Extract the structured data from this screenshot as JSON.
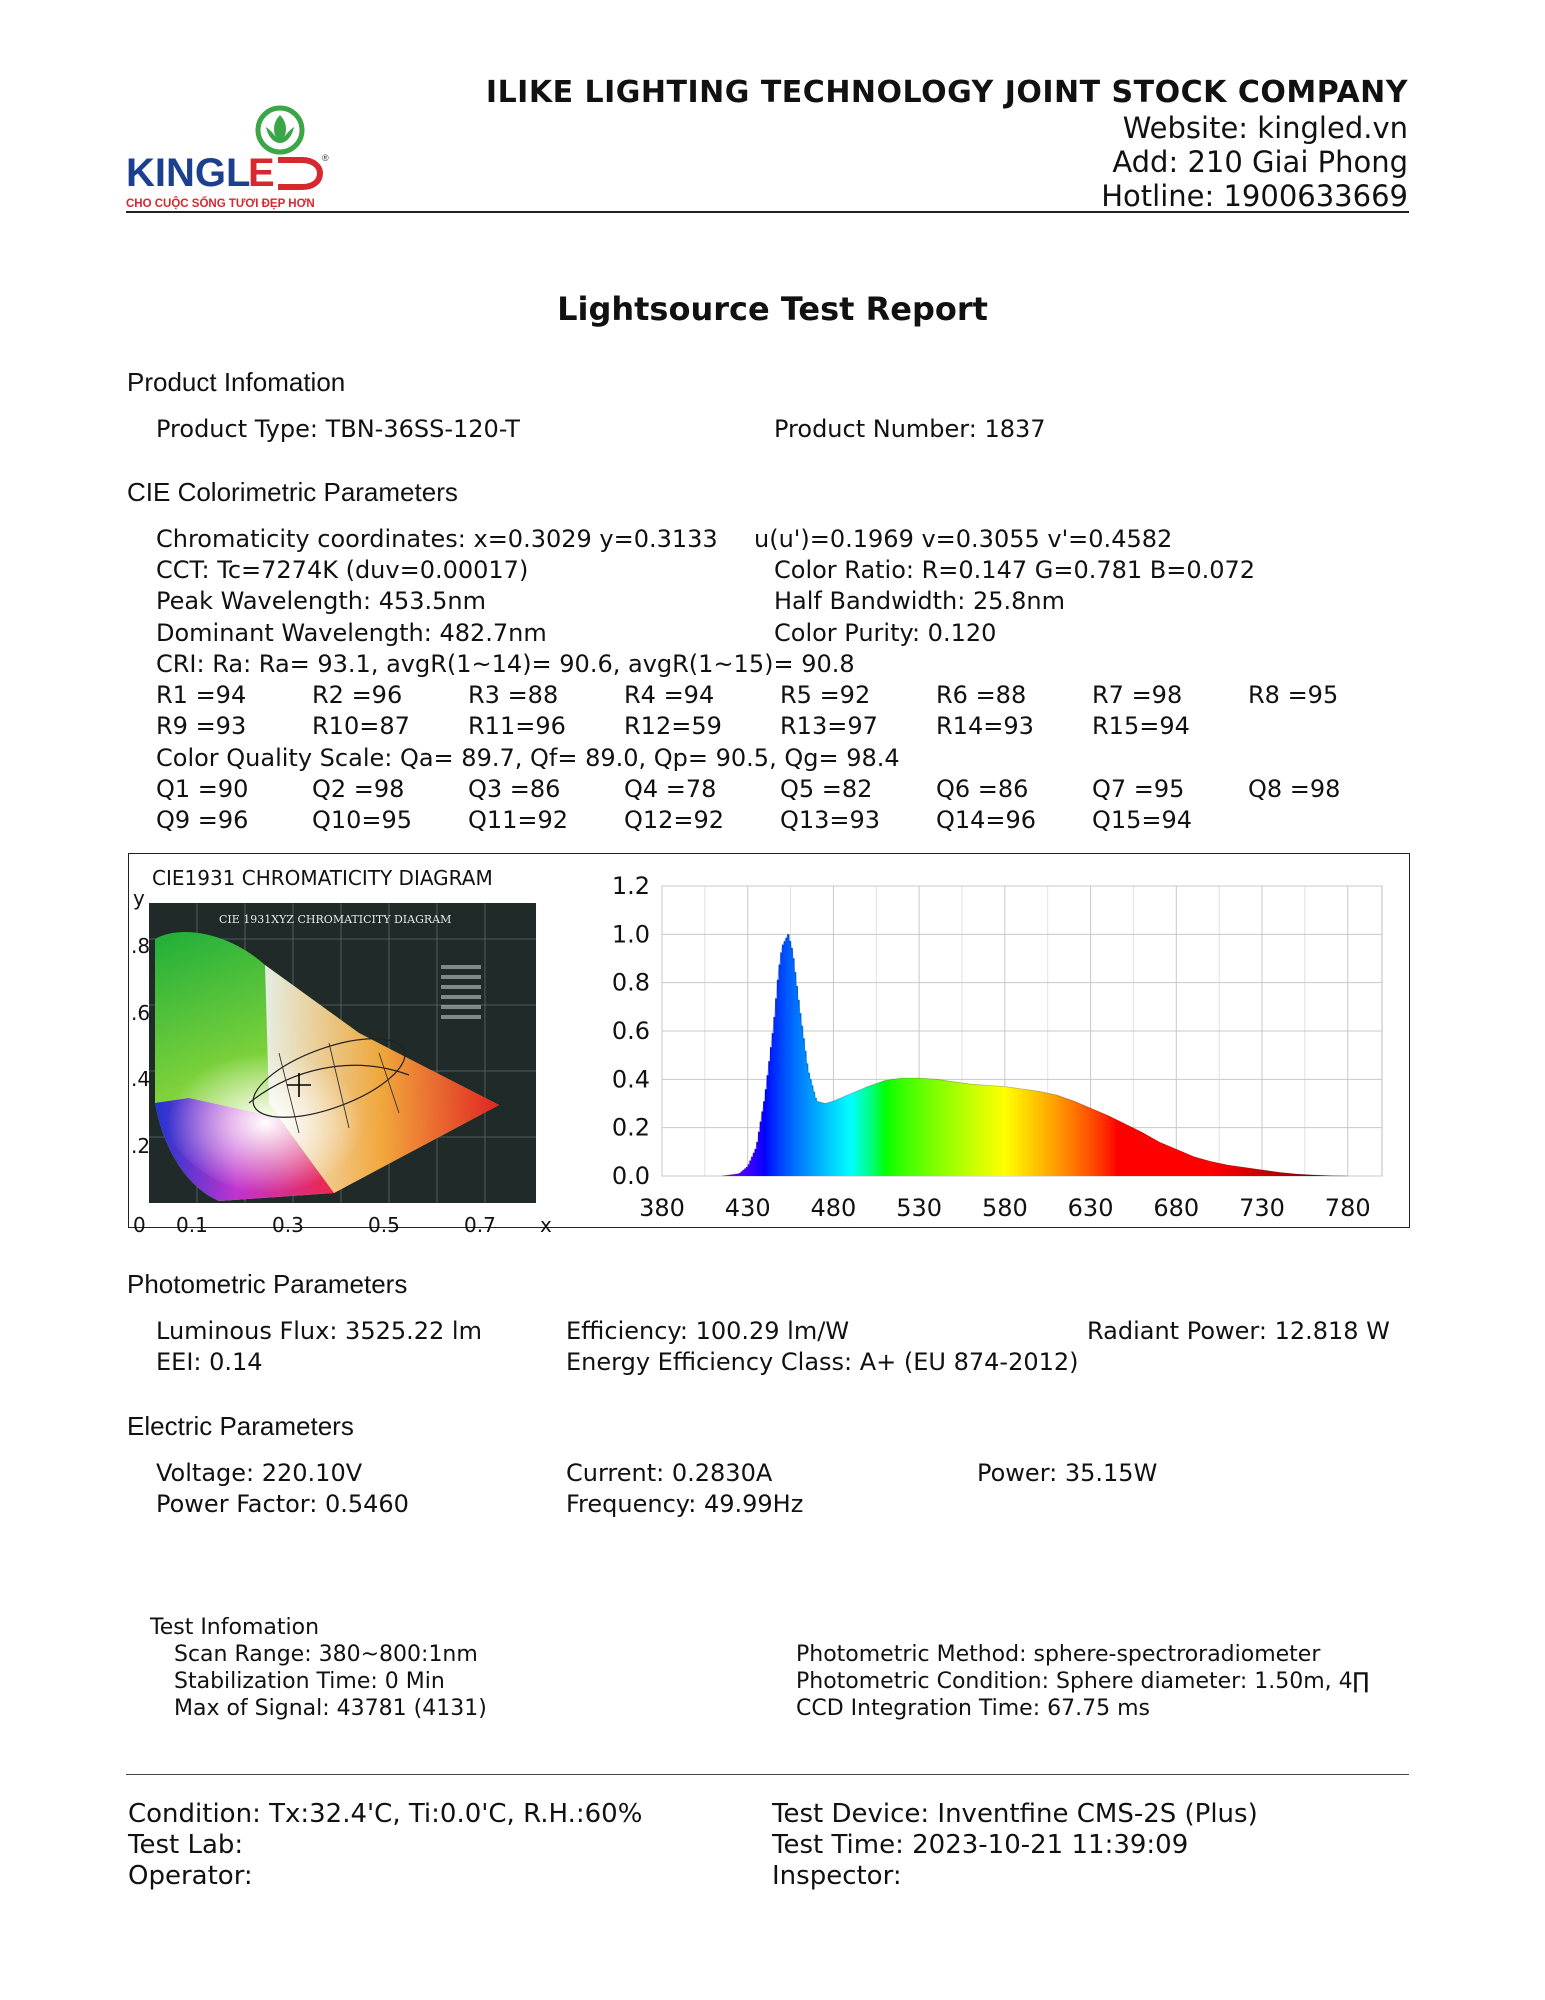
{
  "company": {
    "logo_text": "KINGLED",
    "logo_slogan": "CHO CUỘC SỐNG TƯƠI ĐẸP HƠN",
    "name": "ILIKE LIGHTING TECHNOLOGY JOINT STOCK COMPANY",
    "website": "Website: kingled.vn",
    "address": "Add: 210 Giai Phong",
    "hotline": "Hotline: 1900633669",
    "brand_green": "#3aa648",
    "brand_red": "#d6282e",
    "brand_blue": "#1d3f8f"
  },
  "title": "Lightsource Test Report",
  "product": {
    "heading": "Product Infomation",
    "type": "Product Type: TBN-36SS-120-T",
    "number": "Product Number: 1837"
  },
  "cie": {
    "heading": "CIE Colorimetric Parameters",
    "chromaticity": "Chromaticity coordinates: x=0.3029 y=0.3133",
    "uv": "u(u')=0.1969 v=0.3055 v'=0.4582",
    "cct": "CCT: Tc=7274K (duv=0.00017)",
    "color_ratio": "Color Ratio: R=0.147  G=0.781  B=0.072",
    "peak": "Peak Wavelength: 453.5nm",
    "half_bw": "Half Bandwidth: 25.8nm",
    "dominant": "Dominant Wavelength: 482.7nm",
    "purity": "Color Purity: 0.120",
    "cri": "CRI: Ra: Ra= 93.1, avgR(1~14)= 90.6, avgR(1~15)= 90.8",
    "r_values": [
      "R1 =94",
      "R2 =96",
      "R3 =88",
      "R4 =94",
      "R5 =92",
      "R6 =88",
      "R7 =98",
      "R8 =95",
      "R9 =93",
      "R10=87",
      "R11=96",
      "R12=59",
      "R13=97",
      "R14=93",
      "R15=94"
    ],
    "cqs": "Color Quality Scale: Qa= 89.7, Qf= 89.0, Qp= 90.5, Qg= 98.4",
    "q_values": [
      "Q1 =90",
      "Q2 =98",
      "Q3 =86",
      "Q4 =78",
      "Q5 =82",
      "Q6 =86",
      "Q7 =95",
      "Q8 =98",
      "Q9 =96",
      "Q10=95",
      "Q11=92",
      "Q12=92",
      "Q13=93",
      "Q14=96",
      "Q15=94"
    ]
  },
  "cie_diagram": {
    "title": "CIE1931 CHROMATICITY DIAGRAM",
    "inner_title": "CIE 1931XYZ CHROMATICITY DIAGRAM",
    "y_label": "y",
    "x_label": "x",
    "y_ticks": [
      ".8",
      ".6",
      ".4",
      ".2"
    ],
    "x_ticks": [
      "0",
      "0.1",
      "0.3",
      "0.5",
      "0.7"
    ],
    "point": {
      "x": 0.3029,
      "y": 0.3133
    }
  },
  "chart_data": {
    "type": "area",
    "title": "",
    "xlabel": "",
    "ylabel": "",
    "xlim": [
      380,
      800
    ],
    "ylim": [
      0.0,
      1.2
    ],
    "grid": true,
    "x_ticks": [
      "380",
      "430",
      "480",
      "530",
      "580",
      "630",
      "680",
      "730",
      "780"
    ],
    "y_ticks": [
      "0.0",
      "0.2",
      "0.4",
      "0.6",
      "0.8",
      "1.0",
      "1.2"
    ],
    "x": [
      415,
      425,
      430,
      435,
      440,
      445,
      448,
      450,
      453.5,
      456,
      460,
      465,
      470,
      475,
      480,
      490,
      500,
      510,
      520,
      530,
      540,
      550,
      560,
      570,
      580,
      590,
      600,
      610,
      620,
      630,
      640,
      650,
      660,
      670,
      680,
      690,
      700,
      710,
      720,
      730,
      740,
      750,
      760,
      770,
      780
    ],
    "y": [
      0.0,
      0.01,
      0.04,
      0.12,
      0.33,
      0.62,
      0.85,
      0.95,
      1.0,
      0.93,
      0.7,
      0.44,
      0.31,
      0.3,
      0.31,
      0.34,
      0.37,
      0.395,
      0.405,
      0.405,
      0.4,
      0.39,
      0.38,
      0.375,
      0.37,
      0.36,
      0.35,
      0.335,
      0.31,
      0.28,
      0.25,
      0.215,
      0.18,
      0.14,
      0.11,
      0.08,
      0.06,
      0.045,
      0.035,
      0.025,
      0.015,
      0.008,
      0.004,
      0.001,
      0.0
    ]
  },
  "photometric": {
    "heading": "Photometric Parameters",
    "flux": "Luminous Flux: 3525.22 lm",
    "efficiency": "Efficiency: 100.29 lm/W",
    "radiant": "Radiant Power: 12.818 W",
    "eei": "EEI:  0.14",
    "energy_class": "Energy Efficiency Class: A+ (EU 874-2012)"
  },
  "electric": {
    "heading": "Electric Parameters",
    "voltage": "Voltage: 220.10V",
    "current": "Current: 0.2830A",
    "power": "Power: 35.15W",
    "pf": "Power Factor: 0.5460",
    "frequency": "Frequency: 49.99Hz"
  },
  "test_info": {
    "heading": "Test Infomation",
    "scan": "Scan Range: 380~800:1nm",
    "stab": "Stabilization Time: 0 Min",
    "signal": "Max of Signal: 43781 (4131)",
    "method": "Photometric Method: sphere-spectroradiometer",
    "condition": "Photometric Condition: Sphere diameter: 1.50m, 4∏",
    "ccd": "CCD Integration Time: 67.75 ms"
  },
  "footer": {
    "condition": "Condition: Tx:32.4'C, Ti:0.0'C, R.H.:60%",
    "lab": "Test Lab:",
    "operator": "Operator:",
    "device": "Test Device: Inventfine CMS-2S (Plus)",
    "time": "Test Time: 2023-10-21 11:39:09",
    "inspector": "Inspector:"
  }
}
